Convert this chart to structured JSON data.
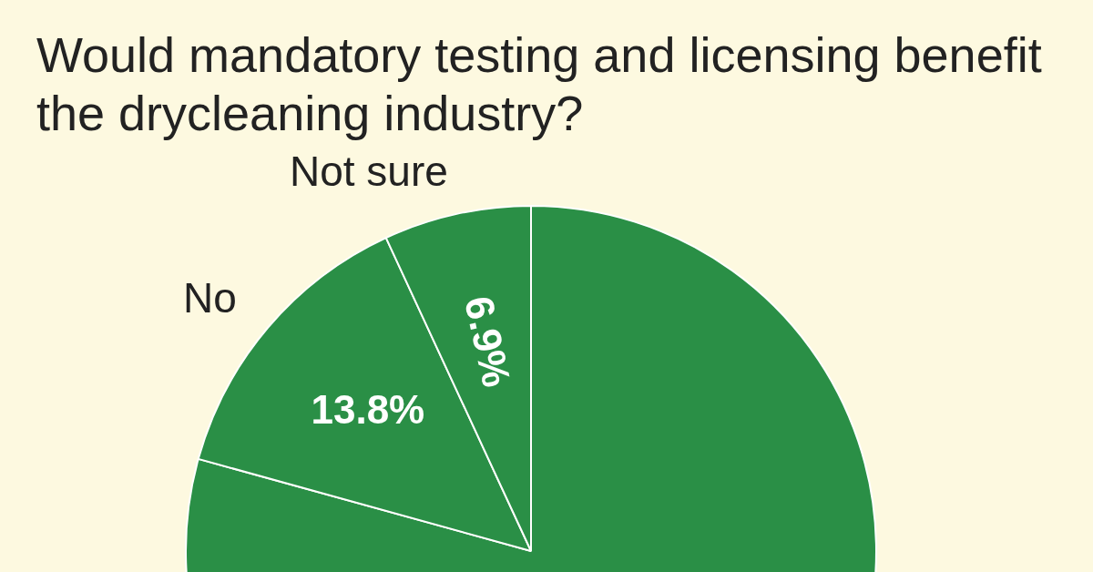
{
  "chart_data": {
    "type": "pie",
    "title": "Would mandatory testing and licensing benefit the drycleaning industry?",
    "categories": [
      null,
      "No",
      "Not sure"
    ],
    "values": [
      79.3,
      13.8,
      6.9
    ],
    "colors": [
      "#2a8f46",
      "#2a8f46",
      "#2a8f46"
    ],
    "value_labels": [
      null,
      "13.8%",
      "6.9%"
    ]
  }
}
